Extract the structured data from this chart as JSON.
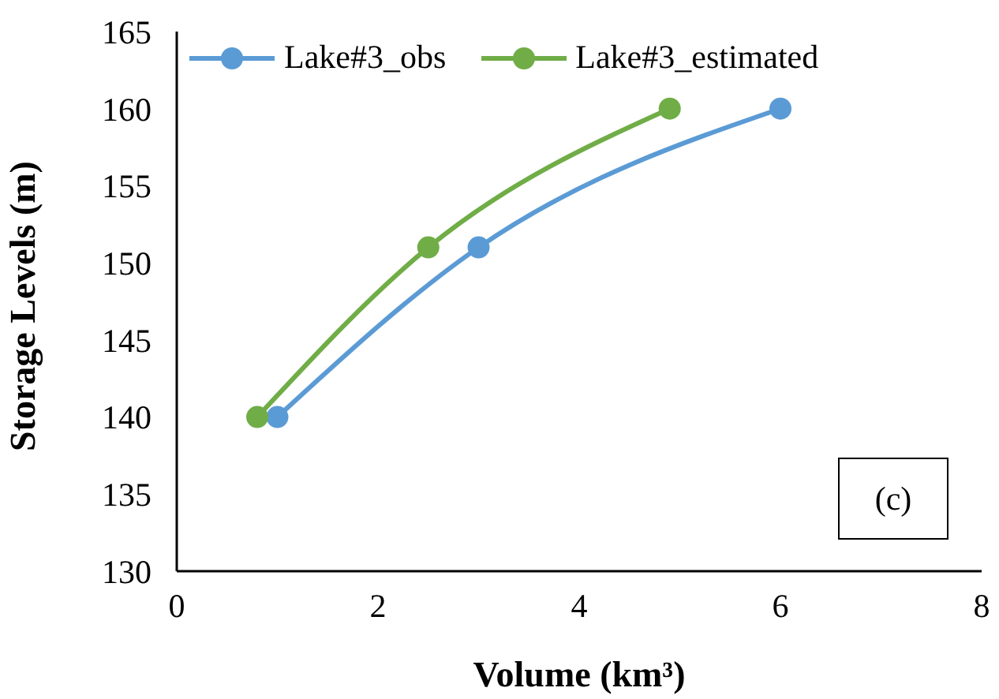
{
  "chart_data": {
    "type": "line",
    "xlabel": "Volume (km³)",
    "ylabel": "Storage Levels (m)",
    "xlim": [
      0,
      8
    ],
    "xticks": [
      0,
      2,
      4,
      6,
      8
    ],
    "ylim": [
      130,
      165
    ],
    "yticks": [
      130,
      135,
      140,
      145,
      150,
      155,
      160,
      165
    ],
    "series": [
      {
        "name": "Lake#3_obs",
        "color": "#5b9bd5",
        "x": [
          1,
          3,
          6
        ],
        "values": [
          140,
          151,
          160
        ]
      },
      {
        "name": "Lake#3_estimated",
        "color": "#70ad47",
        "x": [
          0.8,
          2.5,
          4.9
        ],
        "values": [
          140,
          151,
          160
        ]
      }
    ],
    "marker": "circle",
    "grid": false,
    "legend": "top",
    "annotations": [
      "(c)"
    ]
  }
}
